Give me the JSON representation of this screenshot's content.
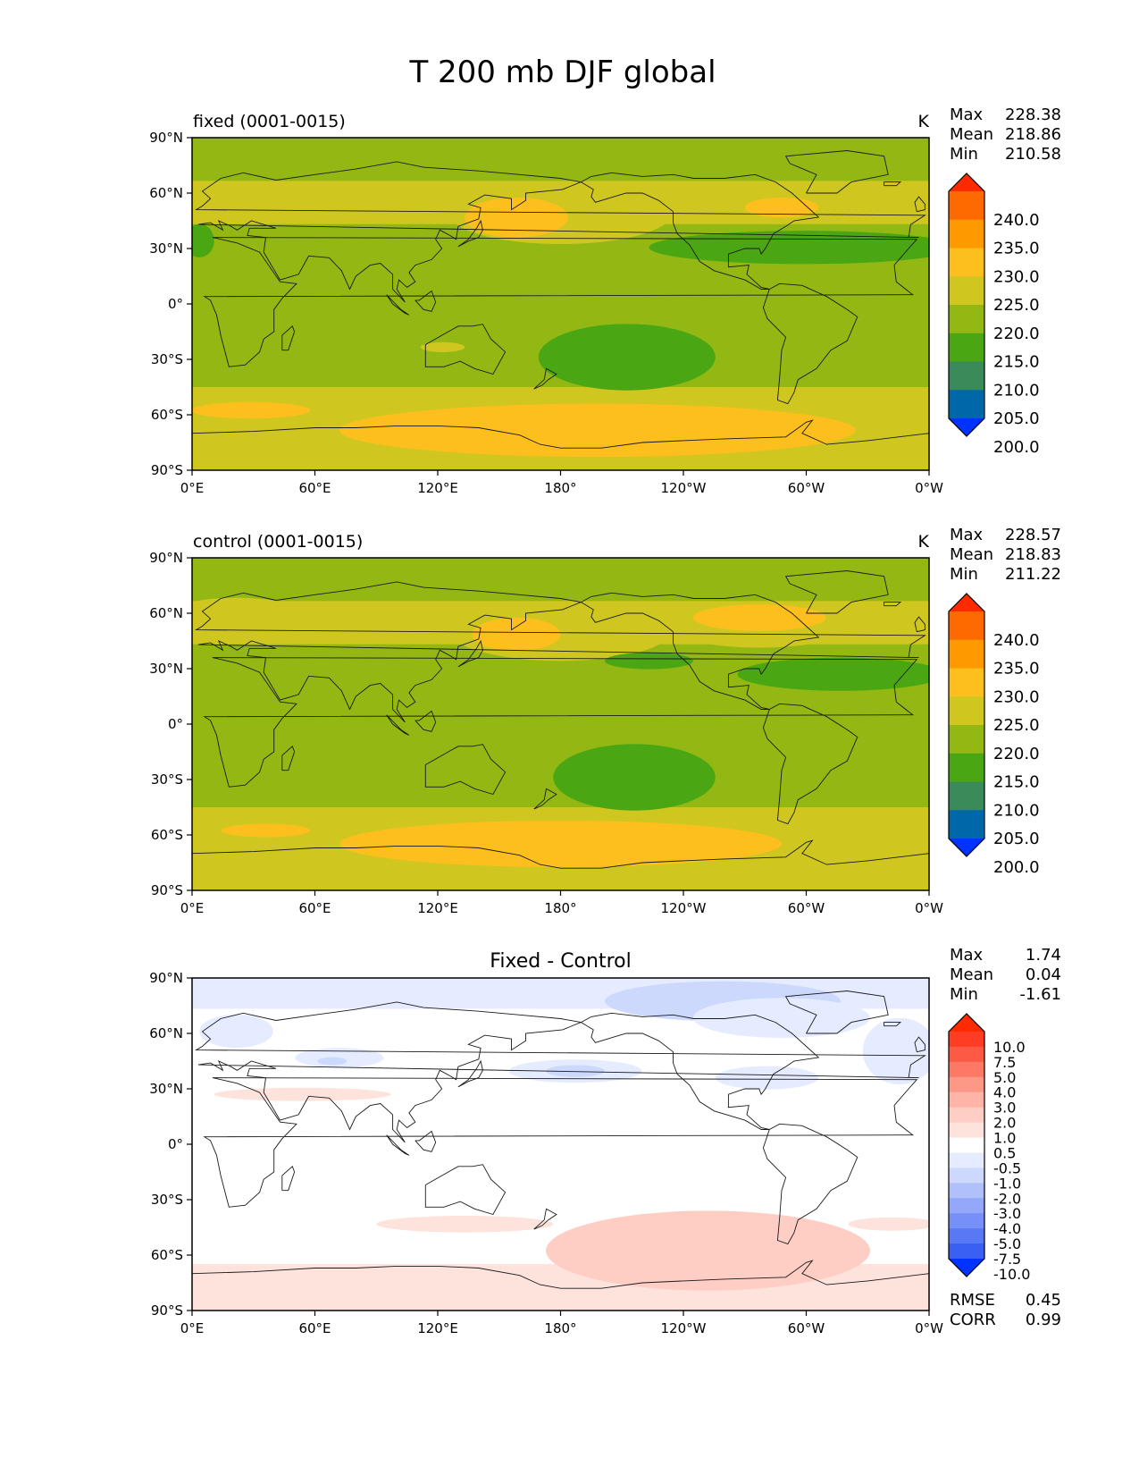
{
  "figure": {
    "title": "T 200 mb DJF global"
  },
  "axes": {
    "lat_ticks": [
      "90°N",
      "60°N",
      "30°N",
      "0°",
      "30°S",
      "60°S",
      "90°S"
    ],
    "lon_ticks": [
      "0°E",
      "60°E",
      "120°E",
      "180°",
      "120°W",
      "60°W",
      "0°W"
    ]
  },
  "panels": [
    {
      "id": "fixed",
      "title_left": "fixed (0001-0015)",
      "title_center": "",
      "units": "K",
      "stats": [
        {
          "label": "Max",
          "value": "228.38"
        },
        {
          "label": "Mean",
          "value": "218.86"
        },
        {
          "label": "Min",
          "value": "210.58"
        }
      ],
      "colorbar": {
        "labels": [
          "240.0",
          "235.0",
          "230.0",
          "225.0",
          "220.0",
          "215.0",
          "210.0",
          "205.0",
          "200.0"
        ],
        "colors": [
          "#ff2a00",
          "#ff6a00",
          "#ff9900",
          "#fdbf1e",
          "#cfc71f",
          "#93b814",
          "#4aa713",
          "#3a8a5a",
          "#0068a8",
          "#0033ff"
        ]
      }
    },
    {
      "id": "control",
      "title_left": "control (0001-0015)",
      "title_center": "",
      "units": "K",
      "stats": [
        {
          "label": "Max",
          "value": "228.57"
        },
        {
          "label": "Mean",
          "value": "218.83"
        },
        {
          "label": "Min",
          "value": "211.22"
        }
      ],
      "colorbar": {
        "labels": [
          "240.0",
          "235.0",
          "230.0",
          "225.0",
          "220.0",
          "215.0",
          "210.0",
          "205.0",
          "200.0"
        ],
        "colors": [
          "#ff2a00",
          "#ff6a00",
          "#ff9900",
          "#fdbf1e",
          "#cfc71f",
          "#93b814",
          "#4aa713",
          "#3a8a5a",
          "#0068a8",
          "#0033ff"
        ]
      }
    },
    {
      "id": "difference",
      "title_left": "",
      "title_center": "Fixed - Control",
      "units": "",
      "stats": [
        {
          "label": "Max",
          "value": "1.74"
        },
        {
          "label": "Mean",
          "value": "0.04"
        },
        {
          "label": "Min",
          "value": "-1.61"
        }
      ],
      "extra_stats": [
        {
          "label": "RMSE",
          "value": "0.45"
        },
        {
          "label": "CORR",
          "value": "0.99"
        }
      ],
      "colorbar": {
        "labels": [
          "10.0",
          "7.5",
          "5.0",
          "4.0",
          "3.0",
          "2.0",
          "1.0",
          "0.5",
          "-0.5",
          "-1.0",
          "-2.0",
          "-3.0",
          "-4.0",
          "-5.0",
          "-7.5",
          "-10.0"
        ],
        "colors": [
          "#ff2a00",
          "#fe3d24",
          "#fd5a45",
          "#fc7a65",
          "#fd9886",
          "#feb4a6",
          "#fecdc4",
          "#fee3dd",
          "#ffffff",
          "#e6ecff",
          "#cdd8fd",
          "#b0c0fb",
          "#93a8f9",
          "#7690f7",
          "#5878f5",
          "#3a5ff3",
          "#0033ff"
        ]
      }
    }
  ]
}
